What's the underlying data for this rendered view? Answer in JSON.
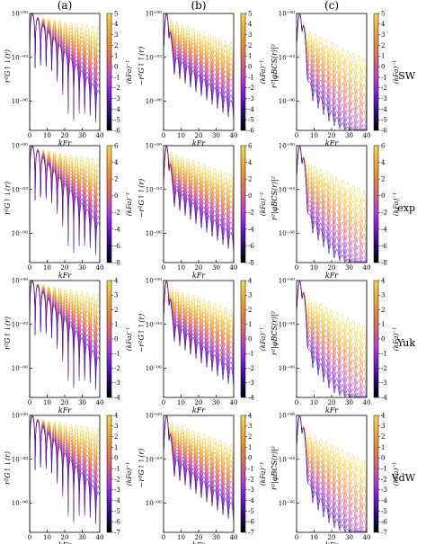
{
  "figure": {
    "column_labels": [
      "(a)",
      "(b)",
      "(c)"
    ],
    "row_labels": [
      "SW",
      "exp",
      "Yuk",
      "VdW"
    ],
    "xlabel": "kFr",
    "colorbar_label": "(kFa)⁻¹",
    "ylabels": [
      "r²G↑↓(r)",
      "−r²G↑↑(r)",
      "r²|φBCS(r)|²"
    ],
    "y_tick_labels": [
      "10⁺⁰⁰",
      "10⁻⁰³",
      "10⁻⁰⁶"
    ],
    "colorbar_ticks": [
      [
        [
          "5",
          "4",
          "3",
          "2",
          "1",
          "0",
          "-1",
          "-2",
          "-3",
          "-4",
          "-5",
          "-6"
        ],
        [
          "5",
          "4",
          "3",
          "2",
          "1",
          "0",
          "-1",
          "-2",
          "-3",
          "-4",
          "-5",
          "-6"
        ],
        [
          "5",
          "4",
          "3",
          "2",
          "1",
          "0",
          "-1",
          "-2",
          "-3",
          "-4",
          "-5",
          "-6"
        ]
      ],
      [
        [
          "6",
          "4",
          "2",
          "0",
          "-2",
          "-4",
          "-6",
          "-8"
        ],
        [
          "6",
          "4",
          "2",
          "0",
          "-2",
          "-4",
          "-6",
          "-8"
        ],
        [
          "6",
          "4",
          "2",
          "0",
          "-2",
          "-4",
          "-6",
          "-8"
        ]
      ],
      [
        [
          "4",
          "3",
          "2",
          "1",
          "0",
          "-1",
          "-2",
          "-3",
          "-4"
        ],
        [
          "4",
          "3",
          "2",
          "1",
          "0",
          "-1",
          "-2",
          "-3",
          "-4"
        ],
        [
          "4",
          "3",
          "2",
          "1",
          "0",
          "-1",
          "-2",
          "-3",
          "-4"
        ]
      ],
      [
        [
          "4",
          "3",
          "2",
          "1",
          "0",
          "-1",
          "-2",
          "-3",
          "-4",
          "-5",
          "-6",
          "-7"
        ],
        [
          "4",
          "3",
          "2",
          "1",
          "0",
          "-1",
          "-2",
          "-3",
          "-4",
          "-5",
          "-6",
          "-7"
        ],
        [
          "4",
          "3",
          "2",
          "1",
          "0",
          "-1",
          "-2",
          "-3",
          "-4",
          "-5",
          "-6",
          "-7"
        ]
      ]
    ]
  },
  "colors": {
    "colormap": [
      "#000004",
      "#2a0a6a",
      "#6a1cc8",
      "#b23bd6",
      "#d4607a",
      "#e2843c",
      "#ecad3a",
      "#f3d950"
    ],
    "axes": "#000000",
    "background": "#ffffff"
  },
  "chart_data": {
    "type": "line",
    "description": "4x3 grid of log-scale line plots; each panel shows a family of curves vs kFr, coloured by (kFa)^-1",
    "x_range": [
      0,
      40
    ],
    "x_ticks": [
      0,
      10,
      20,
      30,
      40
    ],
    "y_scale": "log",
    "y_range": [
      1e-08,
      1
    ],
    "y_ticks": [
      1,
      0.001,
      1e-06
    ],
    "grid": false,
    "panels": [
      {
        "row": "SW",
        "column": "(a)",
        "quantity": "r²G↑↓(r)",
        "colorbar_range": [
          -6,
          5
        ]
      },
      {
        "row": "SW",
        "column": "(b)",
        "quantity": "−r²G↑↑(r)",
        "colorbar_range": [
          -6,
          5
        ]
      },
      {
        "row": "SW",
        "column": "(c)",
        "quantity": "r²|φBCS(r)|²",
        "colorbar_range": [
          -6,
          5
        ]
      },
      {
        "row": "exp",
        "column": "(a)",
        "quantity": "r²G↑↓(r)",
        "colorbar_range": [
          -8,
          6
        ]
      },
      {
        "row": "exp",
        "column": "(b)",
        "quantity": "−r²G↑↑(r)",
        "colorbar_range": [
          -8,
          6
        ]
      },
      {
        "row": "exp",
        "column": "(c)",
        "quantity": "r²|φBCS(r)|²",
        "colorbar_range": [
          -8,
          6
        ]
      },
      {
        "row": "Yuk",
        "column": "(a)",
        "quantity": "r²G↑↓(r)",
        "colorbar_range": [
          -4,
          4
        ]
      },
      {
        "row": "Yuk",
        "column": "(b)",
        "quantity": "−r²G↑↑(r)",
        "colorbar_range": [
          -4,
          4
        ]
      },
      {
        "row": "Yuk",
        "column": "(c)",
        "quantity": "r²|φBCS(r)|²",
        "colorbar_range": [
          -4,
          4
        ]
      },
      {
        "row": "VdW",
        "column": "(a)",
        "quantity": "r²G↑↓(r)",
        "colorbar_range": [
          -7,
          4
        ]
      },
      {
        "row": "VdW",
        "column": "(b)",
        "quantity": "−r²G↑↑(r)",
        "colorbar_range": [
          -7,
          4
        ]
      },
      {
        "row": "VdW",
        "column": "(c)",
        "quantity": "r²|φBCS(r)|²",
        "colorbar_range": [
          -7,
          4
        ]
      }
    ]
  }
}
